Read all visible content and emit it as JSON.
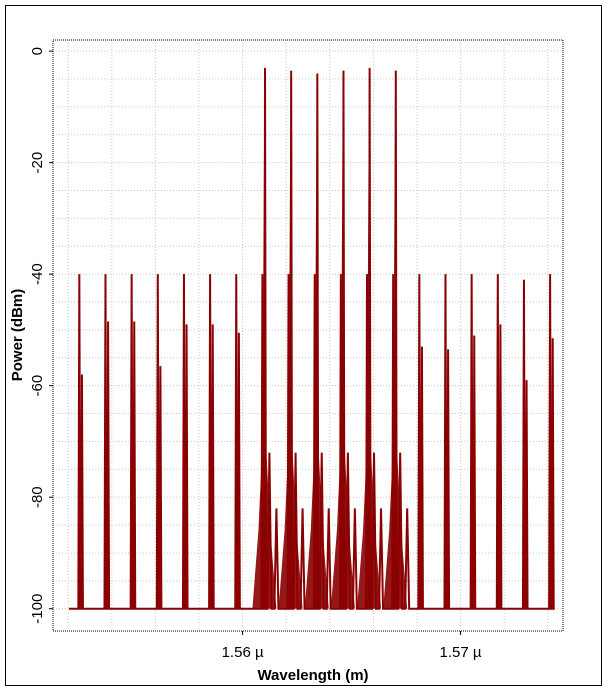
{
  "chart_data": {
    "type": "line",
    "title": "",
    "xlabel": "Wavelength (m)",
    "ylabel": "Power (dBm)",
    "x_unit": "m",
    "xlim": [
      1.5513e-06,
      1.5747e-06
    ],
    "ylim": [
      -104,
      2
    ],
    "yticks": [
      0,
      -20,
      -40,
      -60,
      -80,
      -100
    ],
    "ytick_labels": [
      "0",
      "-20",
      "-40",
      "-60",
      "-80",
      "-100"
    ],
    "xticks": [
      1.56e-06,
      1.57e-06
    ],
    "xtick_labels": [
      "1.56 µ",
      "1.57 µ"
    ],
    "grid": true,
    "grid_style": "dotted",
    "noise_floor_dbm": -100,
    "line_color": "#8b0000",
    "series": [
      {
        "wavelength_m": [
          1.5526e-06,
          1.5538e-06,
          1.555e-06,
          1.5562e-06,
          1.5574e-06,
          1.5586e-06,
          1.5598e-06,
          1.561e-06,
          1.5622e-06,
          1.5634e-06,
          1.5646e-06,
          1.5658e-06,
          1.567e-06,
          1.5682e-06,
          1.5694e-06,
          1.5706e-06,
          1.5718e-06,
          1.573e-06,
          1.5742e-06
        ],
        "peak_power_dbm": [
          -58,
          -48.5,
          -48.5,
          -56.5,
          -49,
          -49,
          -50.5,
          -3,
          -3.5,
          -4,
          -3.5,
          -3,
          -3.5,
          -53,
          -53.5,
          -51,
          -49,
          -59,
          -51.5
        ]
      }
    ]
  }
}
